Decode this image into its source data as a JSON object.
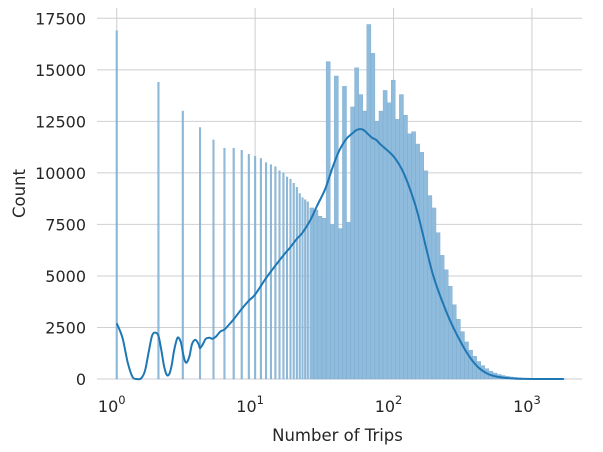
{
  "chart_data": {
    "type": "histogram",
    "title": "",
    "xlabel": "Number of Trips",
    "ylabel": "Count",
    "xscale": "log",
    "xlim": [
      0.72,
      2300
    ],
    "ylim": [
      0,
      18000
    ],
    "grid": true,
    "legend": "none",
    "bar_color": "#8fbcdc",
    "line_color": "#1f77b4",
    "y_ticks": [
      {
        "value": 0,
        "label": "0"
      },
      {
        "value": 2500,
        "label": "2500"
      },
      {
        "value": 5000,
        "label": "5000"
      },
      {
        "value": 7500,
        "label": "7500"
      },
      {
        "value": 10000,
        "label": "10000"
      },
      {
        "value": 12500,
        "label": "12500"
      },
      {
        "value": 15000,
        "label": "15000"
      },
      {
        "value": 17500,
        "label": "17500"
      }
    ],
    "x_ticks": [
      {
        "value": 1,
        "base": "10",
        "exp": "0"
      },
      {
        "value": 10,
        "base": "10",
        "exp": "1"
      },
      {
        "value": 100,
        "base": "10",
        "exp": "2"
      },
      {
        "value": 1000,
        "base": "10",
        "exp": "3"
      }
    ],
    "discrete_bars": [
      {
        "x": 1,
        "count": 16900
      },
      {
        "x": 2,
        "count": 14400
      },
      {
        "x": 3,
        "count": 13000
      },
      {
        "x": 4,
        "count": 12200
      },
      {
        "x": 5,
        "count": 11600
      },
      {
        "x": 6,
        "count": 11200
      },
      {
        "x": 7,
        "count": 11200
      },
      {
        "x": 8,
        "count": 11100
      },
      {
        "x": 9,
        "count": 10900
      },
      {
        "x": 10,
        "count": 10800
      },
      {
        "x": 11,
        "count": 10700
      },
      {
        "x": 12,
        "count": 10500
      },
      {
        "x": 13,
        "count": 10400
      },
      {
        "x": 14,
        "count": 10300
      },
      {
        "x": 15,
        "count": 10100
      },
      {
        "x": 16,
        "count": 10000
      },
      {
        "x": 17,
        "count": 9800
      },
      {
        "x": 18,
        "count": 9700
      },
      {
        "x": 19,
        "count": 9500
      },
      {
        "x": 20,
        "count": 9300
      },
      {
        "x": 21,
        "count": 9000
      },
      {
        "x": 22,
        "count": 8800
      },
      {
        "x": 23,
        "count": 8700
      },
      {
        "x": 24,
        "count": 8600
      }
    ],
    "continuous_bins": {
      "x": [
        25.7,
        27.5,
        29.4,
        31.5,
        33.7,
        36.1,
        38.6,
        41.3,
        44.2,
        47.3,
        50.6,
        54.1,
        57.9,
        62.0,
        66.3,
        70.9,
        75.9,
        81.2,
        86.9,
        93.0,
        99.5,
        106.5,
        114.0,
        122.0,
        130.5,
        139.6,
        149.4,
        159.9,
        171.1,
        183.1,
        195.9,
        209.6,
        224.3,
        240.0,
        256.8,
        274.8,
        294.0,
        314.6,
        336.6,
        360.2,
        385.4,
        412.4,
        441.3,
        472.2,
        505.3,
        540.7,
        578.6,
        619.1,
        662.5,
        708.9,
        758.6,
        811.7,
        868.6,
        929.5,
        994.6,
        1064.3,
        1138.9,
        1218.7,
        1304.1,
        1395.5,
        1493.3,
        1598.0,
        1710.0
      ],
      "counts": [
        8300,
        8200,
        7900,
        7800,
        15400,
        7500,
        14700,
        7300,
        14200,
        7600,
        13200,
        15100,
        13800,
        13000,
        17200,
        15800,
        12500,
        13000,
        14000,
        13400,
        14500,
        12600,
        13800,
        12800,
        11900,
        12000,
        11400,
        11000,
        10100,
        8900,
        8300,
        7100,
        6000,
        5300,
        4500,
        3600,
        2900,
        2300,
        1800,
        1400,
        1100,
        850,
        650,
        500,
        380,
        290,
        220,
        170,
        130,
        100,
        80,
        60,
        45,
        35,
        26,
        20,
        15,
        12,
        9,
        7,
        5,
        4,
        3
      ]
    },
    "kde": {
      "x": [
        1.0,
        1.1,
        1.2,
        1.3,
        1.4,
        1.5,
        1.6,
        1.7,
        1.8,
        1.9,
        2.0,
        2.1,
        2.2,
        2.3,
        2.4,
        2.5,
        2.6,
        2.75,
        2.9,
        3.0,
        3.1,
        3.2,
        3.35,
        3.5,
        3.7,
        3.9,
        4.0,
        4.2,
        4.4,
        4.7,
        4.9,
        5.2,
        5.6,
        6.0,
        6.5,
        7.0,
        8.0,
        9.0,
        10.0,
        12.0,
        14.0,
        16.0,
        18.0,
        20.0,
        22.0,
        25.0,
        28.0,
        32.0,
        36.0,
        40.0,
        45.0,
        50.0,
        55.0,
        60.0,
        65.0,
        70.0,
        75.0,
        80.0,
        90.0,
        100.0,
        110.0,
        120.0,
        135.0,
        150.0,
        170.0,
        190.0,
        210.0,
        230.0,
        250.0,
        275.0,
        300.0,
        330.0,
        370.0,
        420.0,
        480.0,
        550.0,
        650.0,
        750.0,
        900.0,
        1100.0,
        1300.0,
        1500.0,
        1700.0
      ],
      "y": [
        2700,
        2000,
        800,
        100,
        0,
        30,
        400,
        1300,
        2100,
        2250,
        2100,
        1400,
        600,
        200,
        250,
        700,
        1400,
        2000,
        1800,
        1300,
        900,
        800,
        1100,
        1700,
        1900,
        1700,
        1500,
        1700,
        1950,
        2000,
        1950,
        2050,
        2300,
        2400,
        2650,
        2900,
        3400,
        3800,
        4100,
        4900,
        5500,
        6000,
        6400,
        6800,
        7100,
        7700,
        8400,
        9200,
        10200,
        11000,
        11600,
        11900,
        12100,
        12100,
        11900,
        11700,
        11600,
        11400,
        11100,
        10800,
        10400,
        9900,
        9000,
        8000,
        6500,
        5200,
        4300,
        3600,
        3000,
        2400,
        1900,
        1400,
        900,
        500,
        250,
        120,
        50,
        20,
        5,
        0,
        0,
        0,
        0
      ]
    }
  }
}
